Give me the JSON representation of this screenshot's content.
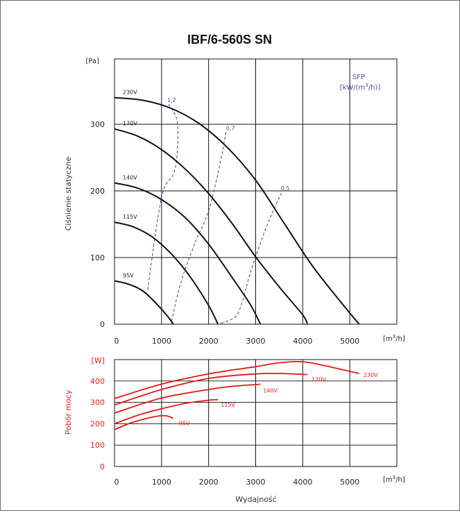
{
  "colors": {
    "black": "#111111",
    "sfp": "#3b3bb0",
    "power": "#e01818"
  },
  "chart_data": [
    {
      "type": "line",
      "title": "IBF/6-560S SN",
      "xlabel": "",
      "xunit": "[m³/h]",
      "xunit_main": "[m",
      "xunit_exp": "3",
      "xunit_tail": "/h]",
      "ylabel": "Ciśnienie statyczne",
      "yunit": "[Pa]",
      "xlim": [
        0,
        6000
      ],
      "ylim": [
        0,
        340
      ],
      "xticks": [
        0,
        1000,
        2000,
        3000,
        4000,
        5000
      ],
      "xtick_labels": [
        "0",
        "1000",
        "2000",
        "3000",
        "4000",
        "5000"
      ],
      "yticks": [
        0,
        100,
        200,
        300
      ],
      "ytick_labels": [
        "0",
        "100",
        "200",
        "300"
      ],
      "grid": true,
      "series": [
        {
          "name": "230V",
          "x": [
            0,
            600,
            1200,
            1800,
            2400,
            3000,
            3600,
            4200,
            4800,
            5200
          ],
          "y": [
            340,
            336,
            324,
            301,
            265,
            216,
            152,
            88,
            34,
            0
          ]
        },
        {
          "name": "170V",
          "x": [
            0,
            500,
            1000,
            1500,
            2000,
            2500,
            3000,
            3500,
            4000,
            4100
          ],
          "y": [
            293,
            282,
            262,
            233,
            196,
            151,
            101,
            56,
            14,
            0
          ]
        },
        {
          "name": "140V",
          "x": [
            0,
            500,
            1000,
            1500,
            2000,
            2500,
            2900,
            3100
          ],
          "y": [
            212,
            204,
            187,
            160,
            120,
            70,
            28,
            0
          ]
        },
        {
          "name": "115V",
          "x": [
            0,
            400,
            800,
            1200,
            1600,
            2000,
            2200
          ],
          "y": [
            153,
            146,
            131,
            106,
            72,
            28,
            0
          ]
        },
        {
          "name": "95V",
          "x": [
            0,
            300,
            600,
            900,
            1150,
            1250
          ],
          "y": [
            65,
            60,
            50,
            30,
            10,
            0
          ]
        }
      ],
      "sfp": {
        "legend_top": "SFP",
        "legend_main": "[kW/(m",
        "legend_exp": "3",
        "legend_tail": "/h)]",
        "lines": [
          {
            "name": "1,2",
            "x": [
              1150,
              1330,
              1330,
              1250,
              1000,
              700
            ],
            "y": [
              330,
              305,
              255,
              225,
              190,
              50
            ]
          },
          {
            "name": "0,7",
            "x": [
              2370,
              2240,
              2000,
              1700,
              1400,
              1200
            ],
            "y": [
              288,
              240,
              170,
              120,
              60,
              0
            ]
          },
          {
            "name": "0,5",
            "x": [
              3550,
              3250,
              2900,
              2700,
              2550,
              2200
            ],
            "y": [
              197,
              150,
              80,
              30,
              10,
              0
            ]
          }
        ]
      }
    },
    {
      "type": "line",
      "title": "",
      "xlabel": "Wydajność",
      "xunit": "[m³/h]",
      "xunit_main": "[m",
      "xunit_exp": "3",
      "xunit_tail": "/h]",
      "ylabel": "Pobór mocy",
      "yunit": "[W]",
      "xlim": [
        0,
        6000
      ],
      "ylim": [
        0,
        500
      ],
      "xticks": [
        0,
        1000,
        2000,
        3000,
        4000,
        5000
      ],
      "xtick_labels": [
        "0",
        "1000",
        "2000",
        "3000",
        "4000",
        "5000"
      ],
      "yticks": [
        0,
        100,
        200,
        300,
        400
      ],
      "ytick_labels": [
        "0",
        "100",
        "200",
        "300",
        "400"
      ],
      "grid": true,
      "series": [
        {
          "name": "230V",
          "x": [
            0,
            1000,
            2000,
            3000,
            3500,
            4000,
            4500,
            5200
          ],
          "y": [
            318,
            385,
            433,
            467,
            485,
            490,
            470,
            435
          ]
        },
        {
          "name": "170V",
          "x": [
            0,
            1000,
            2000,
            3000,
            3500,
            4100
          ],
          "y": [
            288,
            360,
            412,
            433,
            435,
            430
          ]
        },
        {
          "name": "140V",
          "x": [
            0,
            1000,
            2000,
            2500,
            3000,
            3100
          ],
          "y": [
            250,
            320,
            360,
            375,
            383,
            385
          ]
        },
        {
          "name": "115V",
          "x": [
            0,
            500,
            1000,
            1500,
            2000,
            2200
          ],
          "y": [
            200,
            240,
            270,
            295,
            310,
            312
          ]
        },
        {
          "name": "95V",
          "x": [
            0,
            300,
            600,
            900,
            1100,
            1250
          ],
          "y": [
            172,
            200,
            220,
            235,
            237,
            225
          ]
        }
      ]
    }
  ]
}
